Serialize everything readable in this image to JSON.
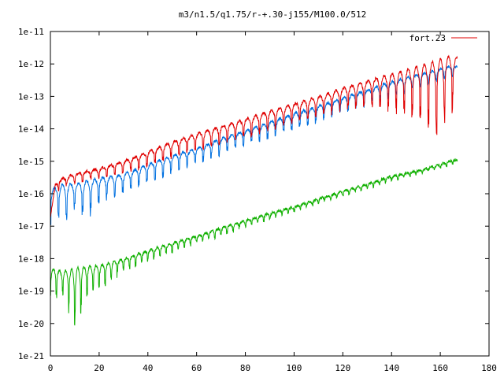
{
  "chart_data": {
    "type": "line",
    "title": "m3/n1.5/q1.75/r-+.30-j155/M100.0/512",
    "xlabel": "",
    "ylabel": "",
    "xlim": [
      0,
      180
    ],
    "ylim": [
      1e-21,
      1e-11
    ],
    "y_scale": "log",
    "grid": false,
    "legend_position": "top-right",
    "x_ticks": [
      0,
      20,
      40,
      60,
      80,
      100,
      120,
      140,
      160,
      180
    ],
    "x_tick_labels": [
      "0",
      "20",
      "40",
      "60",
      "80",
      "100",
      "120",
      "140",
      "160",
      "180"
    ],
    "y_ticks": [
      1e-21,
      1e-20,
      1e-19,
      1e-18,
      1e-17,
      1e-16,
      1e-15,
      1e-14,
      1e-13,
      1e-12,
      1e-11
    ],
    "y_tick_labels": [
      "1e-21",
      "1e-20",
      "1e-19",
      "1e-18",
      "1e-17",
      "1e-16",
      "1e-15",
      "1e-14",
      "1e-13",
      "1e-12",
      "1e-11"
    ],
    "colors": {
      "axis": "#000000",
      "red": "#e00000",
      "blue": "#0070e0",
      "green": "#10b000",
      "purple": "#8020a0"
    },
    "series": [
      {
        "name": "fort.23",
        "color": "#e00000",
        "oscillation_period": 3.3,
        "x": [
          0,
          2,
          5,
          10,
          15,
          20,
          30,
          40,
          50,
          60,
          70,
          80,
          90,
          100,
          110,
          120,
          130,
          140,
          150,
          160,
          165,
          167
        ],
        "y_peak": [
          2e-17,
          2e-16,
          3e-16,
          4e-16,
          5e-16,
          6e-16,
          1e-15,
          2e-15,
          4e-15,
          7e-15,
          1.2e-14,
          2e-14,
          3.5e-14,
          6e-14,
          1e-13,
          1.8e-13,
          3e-13,
          5e-13,
          8e-13,
          1.4e-12,
          1.8e-12,
          1.5e-12
        ],
        "y_trough": [
          2e-17,
          1e-16,
          1.5e-16,
          2e-16,
          2.5e-16,
          3e-16,
          4e-16,
          7e-16,
          1.2e-15,
          2e-15,
          3e-15,
          5e-15,
          8e-15,
          1.4e-14,
          2e-14,
          3.5e-14,
          5e-14,
          3e-14,
          2e-14,
          5e-15,
          3e-14,
          2.5e-14
        ]
      },
      {
        "color": "#0070e0",
        "oscillation_period": 3.3,
        "x": [
          0,
          2,
          5,
          10,
          15,
          20,
          30,
          40,
          50,
          60,
          70,
          80,
          90,
          100,
          110,
          120,
          130,
          140,
          150,
          160,
          165,
          167
        ],
        "y_peak": [
          1.5e-16,
          1.5e-16,
          2e-16,
          2e-16,
          2.5e-16,
          3e-16,
          4e-16,
          8e-16,
          1.5e-15,
          2.5e-15,
          5e-15,
          9e-15,
          1.6e-14,
          3e-14,
          5e-14,
          9e-14,
          1.6e-13,
          2.8e-13,
          4.5e-13,
          7e-13,
          9e-13,
          8e-13
        ],
        "y_trough": [
          1e-17,
          2e-17,
          1e-17,
          3e-17,
          1.5e-17,
          5e-17,
          1e-16,
          2e-16,
          4e-16,
          8e-16,
          1.5e-15,
          3e-15,
          5e-15,
          9e-15,
          1.6e-14,
          3e-14,
          5e-14,
          9e-14,
          1.6e-13,
          2.8e-13,
          4e-13,
          3e-13
        ]
      },
      {
        "color": "#10b000",
        "oscillation_period": 2.5,
        "x": [
          0,
          5,
          10,
          15,
          20,
          30,
          40,
          50,
          60,
          70,
          80,
          90,
          100,
          110,
          120,
          130,
          140,
          150,
          160,
          165,
          167
        ],
        "y_peak": [
          5e-19,
          4e-19,
          5e-19,
          6e-19,
          6e-19,
          1e-18,
          1.8e-18,
          3e-18,
          5e-18,
          9e-18,
          1.5e-17,
          2.5e-17,
          4e-17,
          7e-17,
          1.2e-16,
          2e-16,
          3.5e-16,
          5e-16,
          8e-16,
          1.1e-15,
          1.1e-15
        ],
        "y_trough": [
          4e-20,
          8e-20,
          5e-21,
          6e-20,
          1e-19,
          4e-19,
          8e-19,
          1.5e-18,
          3e-18,
          5e-18,
          9e-18,
          1.6e-17,
          2.8e-17,
          5e-17,
          8e-17,
          1.4e-16,
          2.4e-16,
          3.8e-16,
          6e-16,
          8e-16,
          9e-16
        ]
      }
    ]
  }
}
